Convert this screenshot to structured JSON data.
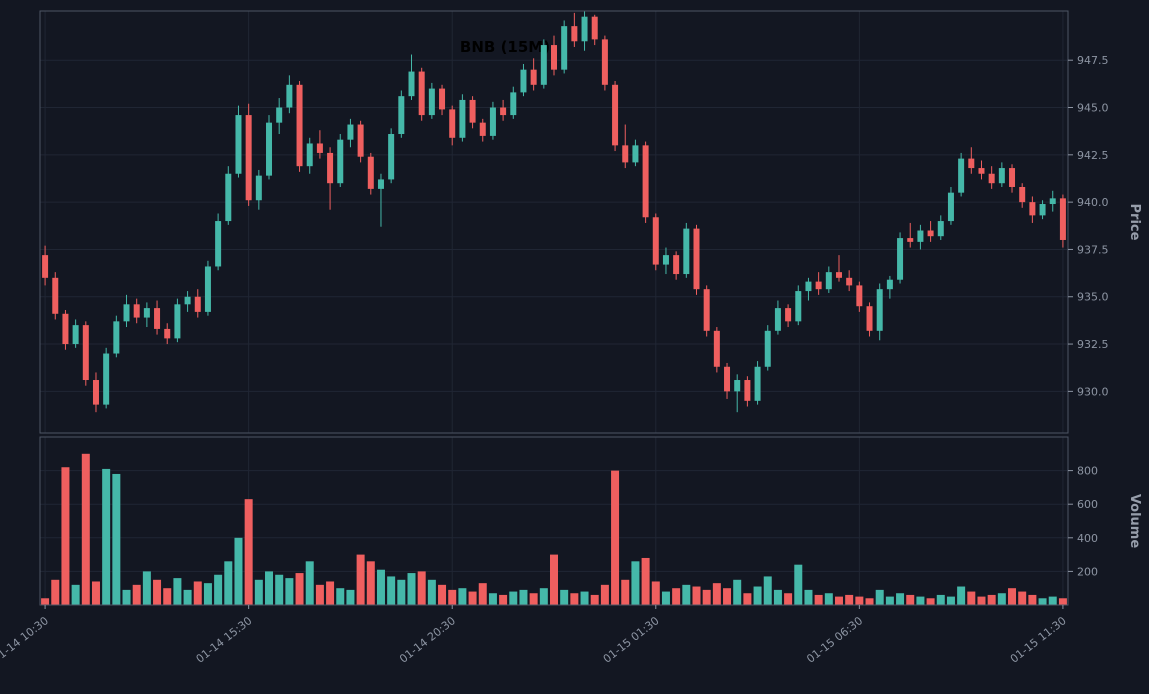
{
  "colors": {
    "background": "#131722",
    "up": "#45b8a9",
    "down": "#ef5f5f",
    "grid": "#202634",
    "spine": "#4d5564",
    "tick_text": "#8d95a3",
    "title": "#000000"
  },
  "chart_data": {
    "type": "candlestick",
    "title": "BNB (15M)",
    "legend": "none",
    "grid": "on",
    "x_ticks": {
      "indices": [
        0,
        20,
        40,
        60,
        80,
        100
      ],
      "labels": [
        "01-14 10:30",
        "01-14 15:30",
        "01-14 20:30",
        "01-15 01:30",
        "01-15 06:30",
        "01-15 11:30"
      ]
    },
    "price_axis": {
      "label": "Price",
      "side": "right",
      "ticks": [
        930.0,
        932.5,
        935.0,
        937.5,
        940.0,
        942.5,
        945.0,
        947.5
      ],
      "range": [
        927.8,
        950.1
      ]
    },
    "volume_axis": {
      "label": "Volume",
      "side": "right",
      "ticks": [
        200,
        400,
        600,
        800
      ],
      "range": [
        0,
        1000
      ]
    },
    "candles_ohlc": [
      [
        937.2,
        937.7,
        935.6,
        936.0
      ],
      [
        936.0,
        936.3,
        933.8,
        934.1
      ],
      [
        934.1,
        934.3,
        932.2,
        932.5
      ],
      [
        932.5,
        933.8,
        932.3,
        933.5
      ],
      [
        933.5,
        933.7,
        930.3,
        930.6
      ],
      [
        930.6,
        931.0,
        928.9,
        929.3
      ],
      [
        929.3,
        932.3,
        929.1,
        932.0
      ],
      [
        932.0,
        934.0,
        931.8,
        933.7
      ],
      [
        933.7,
        935.1,
        933.4,
        934.6
      ],
      [
        934.6,
        934.9,
        933.6,
        933.9
      ],
      [
        933.9,
        934.7,
        933.4,
        934.4
      ],
      [
        934.4,
        934.8,
        933.0,
        933.3
      ],
      [
        933.3,
        933.6,
        932.5,
        932.8
      ],
      [
        932.8,
        934.9,
        932.6,
        934.6
      ],
      [
        934.6,
        935.3,
        934.2,
        935.0
      ],
      [
        935.0,
        935.4,
        933.9,
        934.2
      ],
      [
        934.2,
        936.9,
        934.0,
        936.6
      ],
      [
        936.6,
        939.4,
        936.4,
        939.0
      ],
      [
        939.0,
        941.9,
        938.8,
        941.5
      ],
      [
        941.5,
        945.1,
        941.3,
        944.6
      ],
      [
        944.6,
        945.2,
        939.8,
        940.1
      ],
      [
        940.1,
        941.7,
        939.6,
        941.4
      ],
      [
        941.4,
        944.6,
        941.2,
        944.2
      ],
      [
        944.2,
        945.5,
        943.6,
        945.0
      ],
      [
        945.0,
        946.7,
        944.7,
        946.2
      ],
      [
        946.2,
        946.4,
        941.6,
        941.9
      ],
      [
        941.9,
        943.4,
        941.5,
        943.1
      ],
      [
        943.1,
        943.8,
        942.3,
        942.6
      ],
      [
        942.6,
        942.9,
        939.6,
        941.0
      ],
      [
        941.0,
        943.6,
        940.8,
        943.3
      ],
      [
        943.3,
        944.4,
        942.9,
        944.1
      ],
      [
        944.1,
        944.3,
        942.1,
        942.4
      ],
      [
        942.4,
        942.6,
        940.4,
        940.7
      ],
      [
        940.7,
        941.5,
        938.7,
        941.2
      ],
      [
        941.2,
        943.9,
        941.0,
        943.6
      ],
      [
        943.6,
        945.9,
        943.4,
        945.6
      ],
      [
        945.6,
        947.8,
        945.4,
        946.9
      ],
      [
        946.9,
        947.1,
        944.3,
        944.6
      ],
      [
        944.6,
        946.3,
        944.4,
        946.0
      ],
      [
        946.0,
        946.2,
        944.6,
        944.9
      ],
      [
        944.9,
        945.1,
        943.0,
        943.4
      ],
      [
        943.4,
        945.7,
        943.2,
        945.4
      ],
      [
        945.4,
        945.6,
        943.9,
        944.2
      ],
      [
        944.2,
        944.4,
        943.2,
        943.5
      ],
      [
        943.5,
        945.3,
        943.3,
        945.0
      ],
      [
        945.0,
        945.4,
        944.3,
        944.6
      ],
      [
        944.6,
        946.1,
        944.4,
        945.8
      ],
      [
        945.8,
        947.3,
        945.6,
        947.0
      ],
      [
        947.0,
        947.6,
        945.9,
        946.2
      ],
      [
        946.2,
        948.6,
        946.0,
        948.3
      ],
      [
        948.3,
        948.8,
        946.7,
        947.0
      ],
      [
        947.0,
        949.6,
        946.8,
        949.3
      ],
      [
        949.3,
        950.0,
        948.2,
        948.5
      ],
      [
        948.5,
        950.1,
        948.0,
        949.8
      ],
      [
        949.8,
        949.9,
        948.3,
        948.6
      ],
      [
        948.6,
        948.8,
        945.9,
        946.2
      ],
      [
        946.2,
        946.4,
        942.7,
        943.0
      ],
      [
        943.0,
        944.1,
        941.8,
        942.1
      ],
      [
        942.1,
        943.3,
        941.9,
        943.0
      ],
      [
        943.0,
        943.2,
        938.9,
        939.2
      ],
      [
        939.2,
        939.4,
        936.4,
        936.7
      ],
      [
        936.7,
        937.6,
        936.2,
        937.2
      ],
      [
        937.2,
        937.4,
        935.9,
        936.2
      ],
      [
        936.2,
        938.9,
        936.0,
        938.6
      ],
      [
        938.6,
        938.8,
        935.1,
        935.4
      ],
      [
        935.4,
        935.6,
        932.9,
        933.2
      ],
      [
        933.2,
        933.4,
        931.0,
        931.3
      ],
      [
        931.3,
        931.5,
        929.6,
        930.0
      ],
      [
        930.0,
        930.9,
        928.9,
        930.6
      ],
      [
        930.6,
        930.8,
        929.2,
        929.5
      ],
      [
        929.5,
        931.6,
        929.3,
        931.3
      ],
      [
        931.3,
        933.5,
        931.1,
        933.2
      ],
      [
        933.2,
        934.8,
        933.0,
        934.4
      ],
      [
        934.4,
        934.6,
        933.4,
        933.7
      ],
      [
        933.7,
        935.6,
        933.5,
        935.3
      ],
      [
        935.3,
        936.0,
        934.8,
        935.8
      ],
      [
        935.8,
        936.3,
        935.1,
        935.4
      ],
      [
        935.4,
        936.6,
        935.2,
        936.3
      ],
      [
        936.3,
        937.2,
        935.8,
        936.0
      ],
      [
        936.0,
        936.4,
        935.3,
        935.6
      ],
      [
        935.6,
        935.8,
        934.2,
        934.5
      ],
      [
        934.5,
        934.7,
        932.9,
        933.2
      ],
      [
        933.2,
        935.7,
        932.7,
        935.4
      ],
      [
        935.4,
        936.1,
        934.9,
        935.9
      ],
      [
        935.9,
        938.4,
        935.7,
        938.1
      ],
      [
        938.1,
        938.9,
        937.6,
        937.9
      ],
      [
        937.9,
        938.8,
        937.5,
        938.5
      ],
      [
        938.5,
        939.0,
        937.9,
        938.2
      ],
      [
        938.2,
        939.3,
        938.0,
        939.0
      ],
      [
        939.0,
        940.8,
        938.8,
        940.5
      ],
      [
        940.5,
        942.6,
        940.3,
        942.3
      ],
      [
        942.3,
        942.9,
        941.5,
        941.8
      ],
      [
        941.8,
        942.2,
        941.2,
        941.5
      ],
      [
        941.5,
        941.9,
        940.7,
        941.0
      ],
      [
        941.0,
        942.1,
        940.8,
        941.8
      ],
      [
        941.8,
        942.0,
        940.5,
        940.8
      ],
      [
        940.8,
        941.0,
        939.7,
        940.0
      ],
      [
        940.0,
        940.3,
        938.9,
        939.3
      ],
      [
        939.3,
        940.1,
        939.1,
        939.9
      ],
      [
        939.9,
        940.6,
        939.5,
        940.2
      ],
      [
        940.2,
        940.4,
        937.6,
        938.0
      ]
    ],
    "volumes": [
      40,
      150,
      820,
      120,
      900,
      140,
      810,
      780,
      90,
      120,
      200,
      150,
      100,
      160,
      90,
      140,
      130,
      180,
      260,
      400,
      630,
      150,
      200,
      180,
      160,
      190,
      260,
      120,
      140,
      100,
      90,
      300,
      260,
      210,
      170,
      150,
      190,
      200,
      150,
      120,
      90,
      100,
      80,
      130,
      70,
      60,
      80,
      90,
      70,
      100,
      300,
      90,
      70,
      80,
      60,
      120,
      800,
      150,
      260,
      280,
      140,
      80,
      100,
      120,
      110,
      90,
      130,
      100,
      150,
      70,
      110,
      170,
      90,
      70,
      240,
      90,
      60,
      70,
      50,
      60,
      50,
      40,
      90,
      50,
      70,
      60,
      50,
      40,
      60,
      50,
      110,
      80,
      50,
      60,
      70,
      100,
      80,
      60,
      40,
      50,
      40
    ]
  }
}
